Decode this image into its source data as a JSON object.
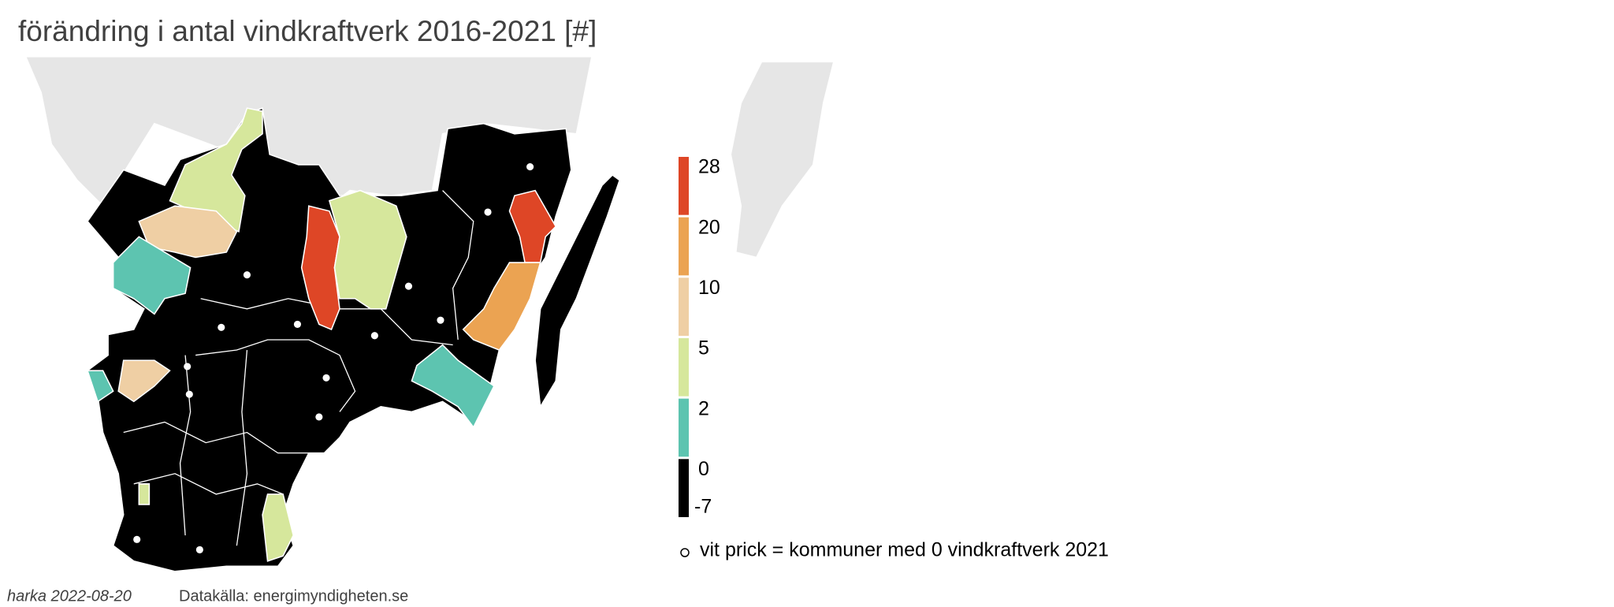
{
  "title": "förändring i antal vindkraftverk 2016-2021 [#]",
  "legend": {
    "breaks": [
      -7,
      0,
      2,
      5,
      10,
      20,
      28
    ],
    "colors": [
      "#000000",
      "#5dc4b0",
      "#d6e79c",
      "#efcfa4",
      "#eba352",
      "#de4626"
    ]
  },
  "note": "vit prick = kommuner med 0 vindkraftverk 2021",
  "footer": {
    "author": "harka 2022-08-20",
    "source": "Datakälla: energimyndigheten.se"
  }
}
